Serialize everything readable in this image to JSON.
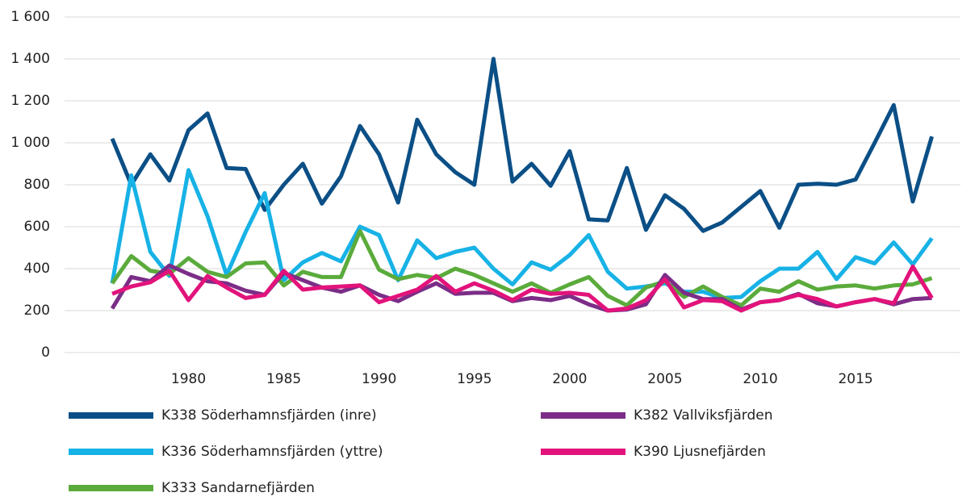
{
  "chart_data": {
    "type": "line",
    "x": [
      1976,
      1977,
      1978,
      1979,
      1980,
      1981,
      1982,
      1983,
      1984,
      1985,
      1986,
      1987,
      1988,
      1989,
      1990,
      1991,
      1992,
      1993,
      1994,
      1995,
      1996,
      1997,
      1998,
      1999,
      2000,
      2001,
      2002,
      2003,
      2004,
      2005,
      2006,
      2007,
      2008,
      2009,
      2010,
      2011,
      2012,
      2013,
      2014,
      2015,
      2016,
      2017,
      2018,
      2019
    ],
    "series": [
      {
        "name": "K338 Söderhamnsfjärden (inre)",
        "color": "#0b4f86",
        "values": [
          1020,
          800,
          945,
          820,
          1060,
          1140,
          880,
          875,
          680,
          800,
          900,
          710,
          840,
          1080,
          945,
          715,
          1110,
          945,
          860,
          800,
          1400,
          815,
          900,
          795,
          960,
          635,
          630,
          880,
          585,
          750,
          685,
          580,
          620,
          695,
          770,
          595,
          800,
          805,
          800,
          825,
          1000,
          1180,
          720,
          1030
        ]
      },
      {
        "name": "K336 Söderhamnsfjärden (yttre)",
        "color": "#17b2e6",
        "values": [
          330,
          845,
          480,
          365,
          870,
          650,
          370,
          575,
          760,
          345,
          430,
          475,
          435,
          600,
          560,
          345,
          535,
          450,
          480,
          500,
          400,
          325,
          430,
          395,
          465,
          560,
          385,
          305,
          315,
          330,
          290,
          290,
          260,
          265,
          340,
          400,
          400,
          480,
          350,
          455,
          425,
          525,
          420,
          545
        ]
      },
      {
        "name": "K333 Sandarnefjärden",
        "color": "#5aab3b",
        "values": [
          330,
          460,
          390,
          375,
          450,
          385,
          360,
          425,
          430,
          320,
          385,
          360,
          360,
          580,
          395,
          350,
          370,
          355,
          400,
          370,
          330,
          290,
          330,
          285,
          325,
          360,
          270,
          225,
          310,
          340,
          265,
          315,
          265,
          225,
          305,
          290,
          340,
          300,
          315,
          320,
          305,
          320,
          325,
          355
        ]
      },
      {
        "name": "K382 Vallviksfjärden",
        "color": "#7b2d87",
        "values": [
          210,
          360,
          340,
          415,
          375,
          340,
          330,
          295,
          275,
          380,
          345,
          310,
          290,
          320,
          275,
          245,
          290,
          330,
          280,
          285,
          285,
          245,
          260,
          250,
          270,
          230,
          200,
          205,
          230,
          370,
          285,
          255,
          255,
          205,
          240,
          250,
          280,
          235,
          220,
          240,
          255,
          230,
          255,
          260
        ]
      },
      {
        "name": "K390 Ljusnefjärden",
        "color": "#e2137b",
        "values": [
          280,
          315,
          335,
          390,
          250,
          365,
          310,
          260,
          275,
          390,
          300,
          310,
          315,
          320,
          240,
          270,
          300,
          365,
          290,
          330,
          295,
          250,
          300,
          280,
          285,
          275,
          200,
          210,
          250,
          350,
          215,
          250,
          245,
          200,
          240,
          250,
          275,
          255,
          220,
          240,
          255,
          235,
          410,
          260
        ]
      }
    ],
    "xlim": [
      1973.5,
      2020.5
    ],
    "xticks": [
      1980,
      1985,
      1990,
      1995,
      2000,
      2005,
      2010,
      2015
    ],
    "ylim": [
      0,
      1600
    ],
    "yticks": [
      0,
      200,
      400,
      600,
      800,
      {
        "value": 1000,
        "label": "1 000"
      },
      {
        "value": 1200,
        "label": "1 200"
      },
      {
        "value": 1400,
        "label": "1 400"
      },
      {
        "value": 1600,
        "label": "1 600"
      }
    ],
    "grid": true
  }
}
